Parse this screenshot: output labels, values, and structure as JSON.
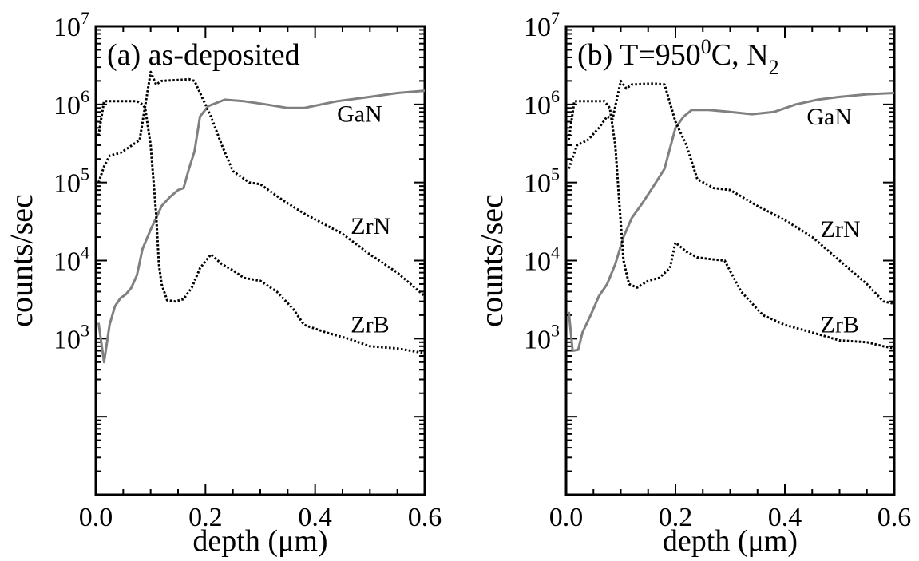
{
  "chart_data": [
    {
      "type": "line",
      "title": "(a) as-deposited",
      "xlabel": "depth (μm)",
      "ylabel": "counts/sec",
      "xlim": [
        0,
        0.6
      ],
      "ylim_log10": [
        1,
        7
      ],
      "yscale": "log",
      "grid": false,
      "x_ticks": [
        0.0,
        0.2,
        0.4,
        0.6
      ],
      "x_tick_labels": [
        "0.0",
        "0.2",
        "0.4",
        "0.6"
      ],
      "y_tick_exponents": [
        3,
        4,
        5,
        6,
        7
      ],
      "y_tick_base": "10",
      "series": [
        {
          "name": "GaN",
          "color": "#808080",
          "style": "solid",
          "points": [
            [
              0.005,
              1600
            ],
            [
              0.015,
              500
            ],
            [
              0.025,
              1500
            ],
            [
              0.035,
              2600
            ],
            [
              0.045,
              3300
            ],
            [
              0.055,
              3700
            ],
            [
              0.065,
              4500
            ],
            [
              0.075,
              6500
            ],
            [
              0.085,
              14000
            ],
            [
              0.1,
              25000
            ],
            [
              0.11,
              35000
            ],
            [
              0.12,
              50000
            ],
            [
              0.135,
              65000
            ],
            [
              0.15,
              80000
            ],
            [
              0.16,
              85000
            ],
            [
              0.17,
              150000
            ],
            [
              0.18,
              250000
            ],
            [
              0.19,
              700000
            ],
            [
              0.205,
              950000
            ],
            [
              0.235,
              1150000
            ],
            [
              0.27,
              1100000
            ],
            [
              0.31,
              1000000
            ],
            [
              0.35,
              900000
            ],
            [
              0.38,
              900000
            ],
            [
              0.44,
              1100000
            ],
            [
              0.5,
              1250000
            ],
            [
              0.55,
              1400000
            ],
            [
              0.6,
              1500000
            ]
          ]
        },
        {
          "name": "ZrN",
          "color": "#000000",
          "style": "dotted",
          "points": [
            [
              0.005,
              100000
            ],
            [
              0.015,
              160000
            ],
            [
              0.025,
              220000
            ],
            [
              0.045,
              240000
            ],
            [
              0.06,
              280000
            ],
            [
              0.08,
              350000
            ],
            [
              0.1,
              2600000
            ],
            [
              0.11,
              1800000
            ],
            [
              0.12,
              2000000
            ],
            [
              0.15,
              2050000
            ],
            [
              0.17,
              2100000
            ],
            [
              0.18,
              2000000
            ],
            [
              0.21,
              700000
            ],
            [
              0.23,
              300000
            ],
            [
              0.25,
              140000
            ],
            [
              0.28,
              100000
            ],
            [
              0.3,
              95000
            ],
            [
              0.34,
              60000
            ],
            [
              0.38,
              40000
            ],
            [
              0.45,
              22000
            ],
            [
              0.5,
              12000
            ],
            [
              0.55,
              7000
            ],
            [
              0.6,
              3500
            ]
          ]
        },
        {
          "name": "ZrB",
          "color": "#000000",
          "style": "dotted",
          "points": [
            [
              0.005,
              400000
            ],
            [
              0.015,
              1100000
            ],
            [
              0.03,
              1100000
            ],
            [
              0.045,
              1100000
            ],
            [
              0.06,
              1100000
            ],
            [
              0.075,
              1100000
            ],
            [
              0.085,
              1000000
            ],
            [
              0.09,
              900000
            ],
            [
              0.1,
              300000
            ],
            [
              0.11,
              40000
            ],
            [
              0.115,
              9000
            ],
            [
              0.12,
              5000
            ],
            [
              0.13,
              3100
            ],
            [
              0.145,
              3000
            ],
            [
              0.16,
              3200
            ],
            [
              0.175,
              4500
            ],
            [
              0.19,
              8000
            ],
            [
              0.21,
              12000
            ],
            [
              0.23,
              9000
            ],
            [
              0.25,
              7500
            ],
            [
              0.27,
              6000
            ],
            [
              0.3,
              5500
            ],
            [
              0.33,
              4000
            ],
            [
              0.36,
              2400
            ],
            [
              0.38,
              1500
            ],
            [
              0.42,
              1200
            ],
            [
              0.46,
              1000
            ],
            [
              0.5,
              800
            ],
            [
              0.55,
              750
            ],
            [
              0.6,
              650
            ]
          ]
        }
      ],
      "annotations": [
        {
          "text": "GaN",
          "x": 0.44,
          "y": 600000
        },
        {
          "text": "ZrN",
          "x": 0.465,
          "y": 22000
        },
        {
          "text": "ZrB",
          "x": 0.465,
          "y": 1200
        }
      ]
    },
    {
      "type": "line",
      "title": "(b) T=950",
      "title_superscript": "0",
      "title_suffix": "C, N",
      "title_subscript": "2",
      "xlabel": "depth (μm)",
      "ylabel": "counts/sec",
      "xlim": [
        0,
        0.6
      ],
      "ylim_log10": [
        1,
        7
      ],
      "yscale": "log",
      "grid": false,
      "x_ticks": [
        0.0,
        0.2,
        0.4,
        0.6
      ],
      "x_tick_labels": [
        "0.0",
        "0.2",
        "0.4",
        "0.6"
      ],
      "y_tick_exponents": [
        3,
        4,
        5,
        6,
        7
      ],
      "y_tick_base": "10",
      "series": [
        {
          "name": "GaN",
          "color": "#808080",
          "style": "solid",
          "points": [
            [
              0.005,
              2200
            ],
            [
              0.012,
              700
            ],
            [
              0.022,
              720
            ],
            [
              0.03,
              1200
            ],
            [
              0.045,
              2000
            ],
            [
              0.06,
              3500
            ],
            [
              0.075,
              5000
            ],
            [
              0.09,
              9000
            ],
            [
              0.105,
              20000
            ],
            [
              0.12,
              35000
            ],
            [
              0.14,
              55000
            ],
            [
              0.16,
              90000
            ],
            [
              0.18,
              150000
            ],
            [
              0.2,
              500000
            ],
            [
              0.215,
              700000
            ],
            [
              0.23,
              850000
            ],
            [
              0.26,
              850000
            ],
            [
              0.3,
              800000
            ],
            [
              0.34,
              750000
            ],
            [
              0.38,
              800000
            ],
            [
              0.42,
              1000000
            ],
            [
              0.46,
              1150000
            ],
            [
              0.5,
              1250000
            ],
            [
              0.55,
              1350000
            ],
            [
              0.6,
              1400000
            ]
          ]
        },
        {
          "name": "ZrN",
          "color": "#000000",
          "style": "dotted",
          "points": [
            [
              0.005,
              150000
            ],
            [
              0.02,
              300000
            ],
            [
              0.04,
              350000
            ],
            [
              0.06,
              500000
            ],
            [
              0.075,
              700000
            ],
            [
              0.085,
              650000
            ],
            [
              0.1,
              2000000
            ],
            [
              0.11,
              1600000
            ],
            [
              0.12,
              1800000
            ],
            [
              0.16,
              1850000
            ],
            [
              0.18,
              1800000
            ],
            [
              0.2,
              600000
            ],
            [
              0.22,
              300000
            ],
            [
              0.24,
              110000
            ],
            [
              0.27,
              85000
            ],
            [
              0.3,
              80000
            ],
            [
              0.35,
              50000
            ],
            [
              0.4,
              33000
            ],
            [
              0.45,
              20000
            ],
            [
              0.5,
              10000
            ],
            [
              0.55,
              5000
            ],
            [
              0.58,
              3000
            ],
            [
              0.6,
              2800
            ]
          ]
        },
        {
          "name": "ZrB",
          "color": "#000000",
          "style": "dotted",
          "points": [
            [
              0.005,
              350000
            ],
            [
              0.015,
              1100000
            ],
            [
              0.03,
              1100000
            ],
            [
              0.05,
              1100000
            ],
            [
              0.07,
              1100000
            ],
            [
              0.08,
              900000
            ],
            [
              0.09,
              300000
            ],
            [
              0.1,
              30000
            ],
            [
              0.105,
              10000
            ],
            [
              0.115,
              5000
            ],
            [
              0.13,
              4500
            ],
            [
              0.15,
              5500
            ],
            [
              0.17,
              6000
            ],
            [
              0.19,
              8000
            ],
            [
              0.2,
              17000
            ],
            [
              0.22,
              13000
            ],
            [
              0.24,
              11000
            ],
            [
              0.26,
              10500
            ],
            [
              0.29,
              10000
            ],
            [
              0.32,
              4000
            ],
            [
              0.36,
              2000
            ],
            [
              0.4,
              1500
            ],
            [
              0.45,
              1200
            ],
            [
              0.5,
              950
            ],
            [
              0.55,
              900
            ],
            [
              0.58,
              800
            ],
            [
              0.6,
              750
            ]
          ]
        }
      ],
      "annotations": [
        {
          "text": "GaN",
          "x": 0.44,
          "y": 550000
        },
        {
          "text": "ZrN",
          "x": 0.465,
          "y": 20000
        },
        {
          "text": "ZrB",
          "x": 0.465,
          "y": 1200
        }
      ]
    }
  ]
}
